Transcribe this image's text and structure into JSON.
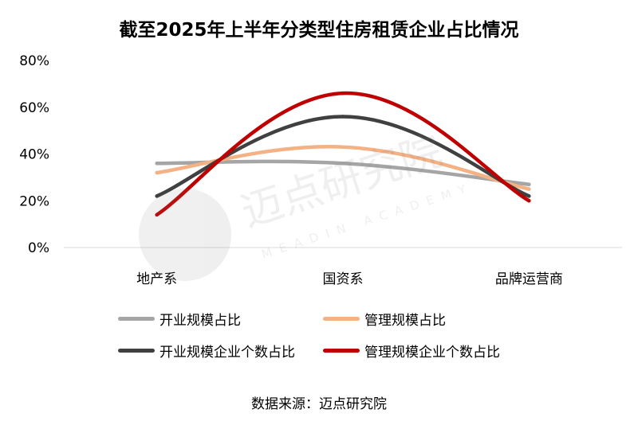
{
  "title": "截至2025年上半年分类型住房租赁企业占比情况",
  "source": "数据来源：迈点研究院",
  "watermark": {
    "cn": "迈点研究院",
    "en": "MEADIN ACADEMY"
  },
  "chart_data": {
    "type": "line",
    "title": "截至2025年上半年分类型住房租赁企业占比情况",
    "categories": [
      "地产系",
      "国资系",
      "品牌运营商"
    ],
    "ylim": [
      0,
      0.8
    ],
    "yticks": [
      0,
      0.2,
      0.4,
      0.6,
      0.8
    ],
    "ytick_labels": [
      "0%",
      "20%",
      "40%",
      "60%",
      "80%"
    ],
    "grid": false,
    "smooth": true,
    "legend_position": "bottom",
    "series": [
      {
        "name": "开业规模占比",
        "values": [
          0.36,
          0.36,
          0.27
        ],
        "color": "#a5a5a5"
      },
      {
        "name": "管理规模占比",
        "values": [
          0.32,
          0.43,
          0.25
        ],
        "color": "#f4b183"
      },
      {
        "name": "开业规模企业个数占比",
        "values": [
          0.22,
          0.56,
          0.22
        ],
        "color": "#404040"
      },
      {
        "name": "管理规模企业个数占比",
        "values": [
          0.14,
          0.66,
          0.2
        ],
        "color": "#c00000"
      }
    ]
  }
}
